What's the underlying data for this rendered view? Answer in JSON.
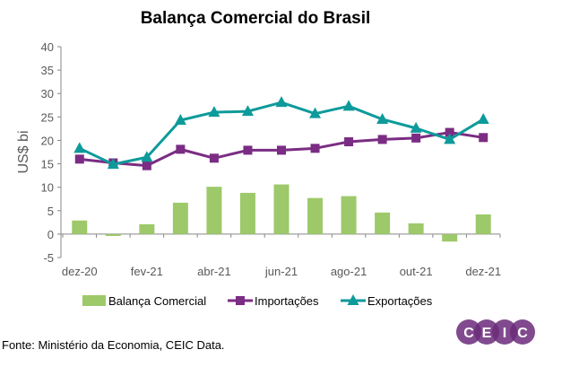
{
  "chart_data": {
    "type": "bar+line",
    "title": "Balança Comercial do Brasil",
    "ylabel": "US$ bi",
    "xlabel": "",
    "ylim": [
      -5,
      40
    ],
    "yticks": [
      -5,
      0,
      5,
      10,
      15,
      20,
      25,
      30,
      35,
      40
    ],
    "categories": [
      "dez-20",
      "jan-21",
      "fev-21",
      "mar-21",
      "abr-21",
      "mai-21",
      "jun-21",
      "jul-21",
      "ago-21",
      "set-21",
      "out-21",
      "nov-21",
      "dez-21"
    ],
    "xtick_labels": [
      "dez-20",
      "",
      "fev-21",
      "",
      "abr-21",
      "",
      "jun-21",
      "",
      "ago-21",
      "",
      "out-21",
      "",
      "dez-21"
    ],
    "grid": false,
    "legend": "bottom",
    "series": [
      {
        "name": "Balança Comercial",
        "type": "bar",
        "color": "#9dc96a",
        "values": [
          2.9,
          -0.4,
          2.1,
          6.7,
          10.1,
          8.8,
          10.6,
          7.7,
          8.1,
          4.6,
          2.3,
          -1.6,
          4.2
        ]
      },
      {
        "name": "Importações",
        "type": "line",
        "marker": "square",
        "color": "#7b2c83",
        "values": [
          16.0,
          15.2,
          14.6,
          18.1,
          16.2,
          17.9,
          17.9,
          18.3,
          19.7,
          20.2,
          20.5,
          21.7,
          20.6
        ]
      },
      {
        "name": "Exportações",
        "type": "line",
        "marker": "triangle",
        "color": "#0e9a9a",
        "values": [
          18.3,
          14.9,
          16.4,
          24.3,
          26.0,
          26.2,
          28.1,
          25.7,
          27.3,
          24.5,
          22.6,
          20.2,
          24.5
        ]
      }
    ]
  },
  "source": "Fonte: Ministério da Economia, CEIC Data.",
  "logo": {
    "text": "CEIC",
    "color": "#6b2a7a"
  }
}
